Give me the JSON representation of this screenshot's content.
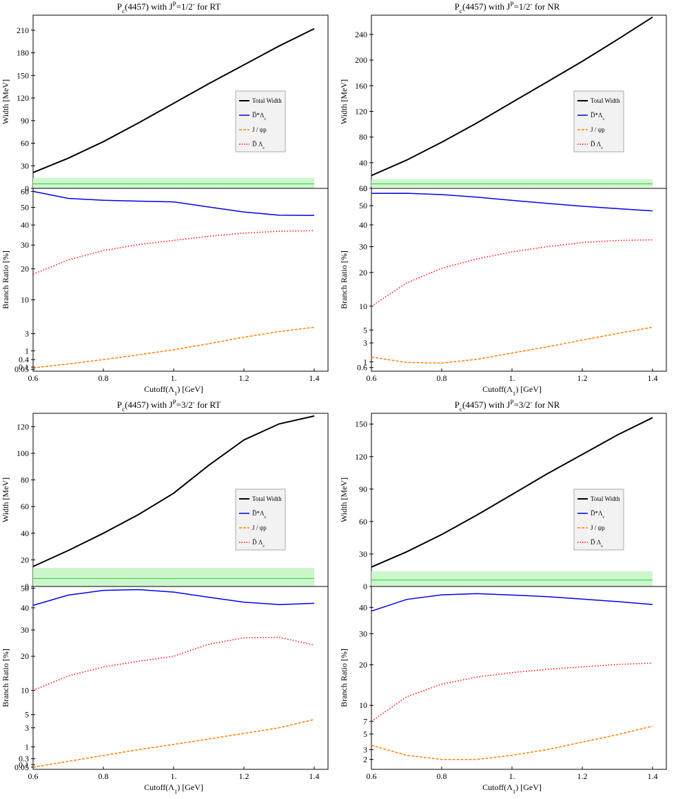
{
  "colors": {
    "total": "#000000",
    "dstar": "#0000ee",
    "jpsi": "#ff7f00",
    "dbar": "#ff0000",
    "band_fill": "#ccf7cc",
    "band_line": "#2ecc40"
  },
  "legend_labels": [
    "Total Width",
    "D̅*Λ_c",
    "J / ψp",
    "D̅ Λ_c"
  ],
  "chart_data": [
    {
      "type": "line",
      "title": "P_c(4457) with J^P=1/2^- for RT",
      "xlabel": "Cutoff(Λ_1) [GeV]",
      "top": {
        "ylabel": "Width [MeV]",
        "ylim": [
          0,
          230
        ],
        "yticks": [
          0,
          30,
          60,
          90,
          120,
          150,
          180,
          210
        ],
        "band": [
          0,
          14
        ],
        "band_line": 6,
        "series": [
          {
            "name": "Total Width",
            "x": [
              0.6,
              0.7,
              0.8,
              0.9,
              1.0,
              1.1,
              1.2,
              1.3,
              1.4
            ],
            "y": [
              21,
              40,
              62,
              87,
              113,
              139,
              164,
              189,
              212
            ]
          }
        ],
        "legend": "right"
      },
      "bottom": {
        "ylabel": "Branch Ratio [%]",
        "scale": "sqrt",
        "ylim": [
          0.02,
          62
        ],
        "yticks": [
          0.05,
          0.1,
          0.4,
          1,
          3,
          10,
          20,
          30,
          40,
          50,
          60
        ],
        "series": [
          {
            "name": "D̅*Λ_c",
            "x": [
              0.6,
              0.7,
              0.8,
              0.9,
              1.0,
              1.1,
              1.2,
              1.3,
              1.4
            ],
            "y": [
              60,
              55.5,
              54.3,
              53.8,
              53.3,
              50.2,
              47.3,
              45.4,
              45.3
            ]
          },
          {
            "name": "J / ψp",
            "x": [
              0.6,
              0.7,
              0.8,
              0.9,
              1.0,
              1.1,
              1.2,
              1.3,
              1.4
            ],
            "y": [
              0.08,
              0.2,
              0.4,
              0.7,
              1.1,
              1.7,
              2.5,
              3.3,
              4.0
            ]
          },
          {
            "name": "D̅ Λ_c",
            "x": [
              0.6,
              0.7,
              0.8,
              0.9,
              1.0,
              1.1,
              1.2,
              1.3,
              1.4
            ],
            "y": [
              18,
              23.5,
              27.5,
              30.2,
              32.2,
              34.2,
              35.8,
              36.7,
              37
            ]
          }
        ]
      },
      "xlim": [
        0.6,
        1.4
      ],
      "xticks": [
        0.6,
        0.8,
        1.0,
        1.2,
        1.4
      ],
      "xticklabels": [
        "0.6",
        "0.8",
        "1.",
        "1.2",
        "1.4"
      ]
    },
    {
      "type": "line",
      "title": "P_c(4457) with J^P=1/2^- for NR",
      "xlabel": "Cutoff(Λ_1) [GeV]",
      "top": {
        "ylabel": "Width [MeV]",
        "ylim": [
          0,
          270
        ],
        "yticks": [
          0,
          40,
          80,
          120,
          160,
          200,
          240
        ],
        "band": [
          2,
          14
        ],
        "band_line": 7,
        "series": [
          {
            "name": "Total Width",
            "x": [
              0.6,
              0.7,
              0.8,
              0.9,
              1.0,
              1.1,
              1.2,
              1.3,
              1.4
            ],
            "y": [
              20,
              44,
              72,
              102,
              134,
              166,
              198,
              232,
              267
            ]
          }
        ],
        "legend": "right"
      },
      "bottom": {
        "ylabel": "Branch Ratio [%]",
        "scale": "sqrt",
        "ylim": [
          0.4,
          60
        ],
        "yticks": [
          0.6,
          1,
          3,
          5,
          10,
          20,
          30,
          40,
          50,
          60
        ],
        "series": [
          {
            "name": "D̅*Λ_c",
            "x": [
              0.6,
              0.7,
              0.8,
              0.9,
              1.0,
              1.1,
              1.2,
              1.3,
              1.4
            ],
            "y": [
              57,
              57.1,
              56.3,
              54.8,
              53.0,
              51.3,
              49.7,
              48.4,
              47.2
            ]
          },
          {
            "name": "J / ψp",
            "x": [
              0.6,
              0.7,
              0.8,
              0.9,
              1.0,
              1.1,
              1.2,
              1.3,
              1.4
            ],
            "y": [
              1.4,
              0.95,
              0.9,
              1.2,
              1.8,
              2.5,
              3.4,
              4.4,
              5.5
            ]
          },
          {
            "name": "D̅ Λ_c",
            "x": [
              0.6,
              0.7,
              0.8,
              0.9,
              1.0,
              1.1,
              1.2,
              1.3,
              1.4
            ],
            "y": [
              10,
              16.5,
              21.5,
              25,
              27.8,
              30,
              31.8,
              32.7,
              33
            ]
          }
        ]
      },
      "xlim": [
        0.6,
        1.4
      ],
      "xticks": [
        0.6,
        0.8,
        1.0,
        1.2,
        1.4
      ],
      "xticklabels": [
        "0.6",
        "0.8",
        "1.",
        "1.2",
        "1.4"
      ]
    },
    {
      "type": "line",
      "title": "P_c(4457) with J^P=3/2^- for RT",
      "xlabel": "Cutoff(Λ_1) [GeV]",
      "top": {
        "ylabel": "Width [MeV]",
        "ylim": [
          0,
          130
        ],
        "yticks": [
          0,
          20,
          40,
          60,
          80,
          100,
          120
        ],
        "band": [
          0,
          14
        ],
        "band_line": 6,
        "series": [
          {
            "name": "Total Width",
            "x": [
              0.6,
              0.7,
              0.8,
              0.9,
              1.0,
              1.1,
              1.2,
              1.3,
              1.4
            ],
            "y": [
              15,
              27,
              40,
              54,
              70,
              91,
              110,
              122,
              128
            ]
          }
        ],
        "legend": "right"
      },
      "bottom": {
        "ylabel": "Branch Ratio [%]",
        "scale": "sqrt",
        "ylim": [
          0.02,
          51
        ],
        "yticks": [
          0.05,
          0.1,
          0.3,
          1,
          3,
          5,
          10,
          20,
          30,
          40,
          50
        ],
        "series": [
          {
            "name": "D̅*Λ_c",
            "x": [
              0.6,
              0.7,
              0.8,
              0.9,
              1.0,
              1.1,
              1.2,
              1.3,
              1.4
            ],
            "y": [
              41.2,
              46.4,
              48.9,
              49.3,
              48.0,
              45.3,
              42.8,
              41.6,
              42.2
            ]
          },
          {
            "name": "J / ψp",
            "x": [
              0.6,
              0.7,
              0.8,
              0.9,
              1.0,
              1.1,
              1.2,
              1.3,
              1.4
            ],
            "y": [
              0.05,
              0.2,
              0.45,
              0.8,
              1.2,
              1.7,
              2.3,
              3.0,
              4.2
            ]
          },
          {
            "name": "D̅ Λ_c",
            "x": [
              0.6,
              0.7,
              0.8,
              0.9,
              1.0,
              1.1,
              1.2,
              1.3,
              1.4
            ],
            "y": [
              10,
              13.8,
              16.5,
              18.3,
              20,
              24.3,
              26.8,
              27,
              24
            ]
          }
        ]
      },
      "xlim": [
        0.6,
        1.4
      ],
      "xticks": [
        0.6,
        0.8,
        1.0,
        1.2,
        1.4
      ],
      "xticklabels": [
        "0.6",
        "0.8",
        "1.",
        "1.2",
        "1.4"
      ]
    },
    {
      "type": "line",
      "title": "P_c(4457) with J^P=3/2^- for NR",
      "xlabel": "Cutoff(Λ_1) [GeV]",
      "top": {
        "ylabel": "Width [MeV]",
        "ylim": [
          0,
          160
        ],
        "yticks": [
          0,
          30,
          60,
          90,
          120,
          150
        ],
        "band": [
          0,
          14
        ],
        "band_line": 6,
        "series": [
          {
            "name": "Total Width",
            "x": [
              0.6,
              0.7,
              0.8,
              0.9,
              1.0,
              1.1,
              1.2,
              1.3,
              1.4
            ],
            "y": [
              18,
              32,
              48,
              66,
              85,
              104,
              122,
              140,
              156
            ]
          }
        ],
        "legend": "right"
      },
      "bottom": {
        "ylabel": "Branch Ratio [%]",
        "scale": "sqrt",
        "ylim": [
          1.2,
          49
        ],
        "yticks": [
          2,
          3,
          5,
          7,
          10,
          20,
          30,
          40
        ],
        "series": [
          {
            "name": "D̅*Λ_c",
            "x": [
              0.6,
              0.7,
              0.8,
              0.9,
              1.0,
              1.1,
              1.2,
              1.3,
              1.4
            ],
            "y": [
              38.5,
              43.3,
              45.3,
              45.8,
              45.2,
              44.5,
              43.5,
              42.4,
              41.2
            ]
          },
          {
            "name": "J / ψp",
            "x": [
              0.6,
              0.7,
              0.8,
              0.9,
              1.0,
              1.1,
              1.2,
              1.3,
              1.4
            ],
            "y": [
              3.5,
              2.4,
              2.0,
              2.0,
              2.4,
              3.0,
              3.9,
              4.9,
              6.2
            ]
          },
          {
            "name": "D̅ Λ_c",
            "x": [
              0.6,
              0.7,
              0.8,
              0.9,
              1.0,
              1.1,
              1.2,
              1.3,
              1.4
            ],
            "y": [
              7,
              11.8,
              14.8,
              16.6,
              17.8,
              18.7,
              19.4,
              20.1,
              20.5
            ]
          }
        ]
      },
      "xlim": [
        0.6,
        1.4
      ],
      "xticks": [
        0.6,
        0.8,
        1.0,
        1.2,
        1.4
      ],
      "xticklabels": [
        "0.6",
        "0.8",
        "1.",
        "1.2",
        "1.4"
      ]
    }
  ]
}
